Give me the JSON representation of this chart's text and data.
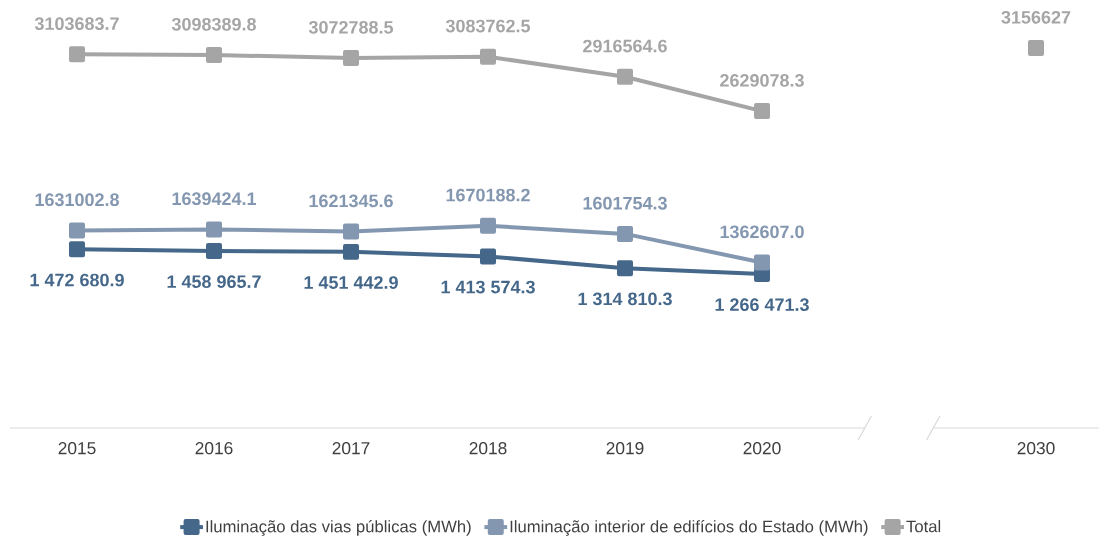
{
  "chart_data": {
    "type": "line",
    "categories": [
      "2015",
      "2016",
      "2017",
      "2018",
      "2019",
      "2020",
      null,
      "2030"
    ],
    "series": [
      {
        "name": "Iluminação das vias públicas (MWh)",
        "color": "#44678a",
        "values": [
          1472680.9,
          1458965.7,
          1451442.9,
          1413574.3,
          1314810.3,
          1266471.3,
          null,
          null
        ],
        "value_labels": [
          "1 472 680.9",
          "1 458 965.7",
          "1 451 442.9",
          "1 413 574.3",
          "1 314 810.3",
          "1 266 471.3",
          null,
          null
        ]
      },
      {
        "name": "Iluminação interior de edifícios do Estado (MWh)",
        "color": "#8497b0",
        "values": [
          1631002.8,
          1639424.1,
          1621345.6,
          1670188.2,
          1601754.3,
          1362607.0,
          null,
          null
        ],
        "value_labels": [
          "1631002.8",
          "1639424.1",
          "1621345.6",
          "1670188.2",
          "1601754.3",
          "1362607.0",
          null,
          null
        ]
      },
      {
        "name": "Total",
        "color": "#a5a5a5",
        "values": [
          3103683.7,
          3098389.8,
          3072788.5,
          3083762.5,
          2916564.6,
          2629078.3,
          null,
          3156627
        ],
        "value_labels": [
          "3103683.7",
          "3098389.8",
          "3072788.5",
          "3083762.5",
          "2916564.6",
          "2629078.3",
          null,
          "3156627"
        ]
      }
    ],
    "tick_labels": "x",
    "marker": "square",
    "legend": "bottom"
  }
}
